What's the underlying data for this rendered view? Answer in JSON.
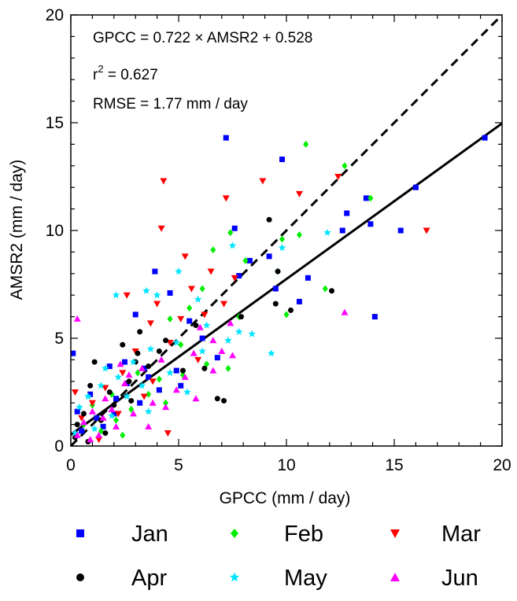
{
  "chart_data": {
    "type": "scatter",
    "title": "",
    "xlabel": "GPCC (mm / day)",
    "ylabel": "AMSR2 (mm / day)",
    "xlim": [
      0,
      20
    ],
    "ylim": [
      0,
      20
    ],
    "xticks": [
      "0",
      "5",
      "10",
      "15",
      "20"
    ],
    "yticks": [
      "0",
      "5",
      "10",
      "15",
      "20"
    ],
    "grid": false,
    "legend_position": "bottom",
    "annotations": {
      "line1": "GPCC = 0.722 × AMSR2 + 0.528",
      "line2_base": "r",
      "line2_sup": "2",
      "line2_rest": " = 0.627",
      "line3": "RMSE = 1.77 mm / day"
    },
    "lines": [
      {
        "style": "solid",
        "x": [
          0,
          20
        ],
        "y": [
          0.528,
          14.968
        ]
      },
      {
        "style": "dashed",
        "x": [
          0,
          20
        ],
        "y": [
          0,
          20
        ]
      }
    ],
    "series": [
      {
        "name": "Jan",
        "marker": "square",
        "color": "#0000ff",
        "points": [
          [
            7.2,
            14.3
          ],
          [
            9.8,
            13.3
          ],
          [
            13.7,
            11.5
          ],
          [
            12.8,
            10.8
          ],
          [
            12.6,
            10.0
          ],
          [
            13.9,
            10.3
          ],
          [
            15.3,
            10.0
          ],
          [
            16.0,
            12.0
          ],
          [
            19.2,
            14.3
          ],
          [
            7.6,
            10.1
          ],
          [
            8.3,
            8.6
          ],
          [
            9.2,
            8.8
          ],
          [
            7.8,
            7.9
          ],
          [
            9.5,
            7.3
          ],
          [
            11.0,
            7.8
          ],
          [
            10.6,
            6.7
          ],
          [
            14.1,
            6.0
          ],
          [
            3.9,
            8.1
          ],
          [
            4.6,
            7.1
          ],
          [
            3.0,
            6.1
          ],
          [
            5.5,
            5.8
          ],
          [
            6.1,
            5.0
          ],
          [
            6.8,
            4.1
          ],
          [
            4.9,
            3.5
          ],
          [
            3.6,
            3.2
          ],
          [
            2.6,
            2.9
          ],
          [
            2.1,
            2.2
          ],
          [
            1.2,
            1.3
          ],
          [
            0.5,
            0.7
          ],
          [
            0.9,
            2.4
          ],
          [
            0.1,
            4.3
          ],
          [
            1.8,
            3.7
          ],
          [
            2.5,
            3.9
          ],
          [
            3.2,
            2.0
          ],
          [
            4.1,
            2.6
          ],
          [
            5.1,
            2.8
          ],
          [
            1.5,
            0.9
          ],
          [
            0.3,
            1.6
          ],
          [
            2.0,
            1.5
          ],
          [
            3.4,
            3.6
          ]
        ]
      },
      {
        "name": "Feb",
        "marker": "diamond",
        "color": "#00ee00",
        "points": [
          [
            10.9,
            14.0
          ],
          [
            12.7,
            13.0
          ],
          [
            13.9,
            11.5
          ],
          [
            10.6,
            9.8
          ],
          [
            7.4,
            9.9
          ],
          [
            8.1,
            8.6
          ],
          [
            6.6,
            9.1
          ],
          [
            9.8,
            9.6
          ],
          [
            9.6,
            8.1
          ],
          [
            11.8,
            7.3
          ],
          [
            10.0,
            6.1
          ],
          [
            6.1,
            7.3
          ],
          [
            5.5,
            6.4
          ],
          [
            4.6,
            5.9
          ],
          [
            5.1,
            4.7
          ],
          [
            6.3,
            3.8
          ],
          [
            7.3,
            3.6
          ],
          [
            4.1,
            3.1
          ],
          [
            3.6,
            2.4
          ],
          [
            2.8,
            1.7
          ],
          [
            2.1,
            1.2
          ],
          [
            1.4,
            0.7
          ],
          [
            0.6,
            1.0
          ],
          [
            1.9,
            2.4
          ],
          [
            3.1,
            3.4
          ],
          [
            4.4,
            2.0
          ],
          [
            2.4,
            0.5
          ],
          [
            5.2,
            3.3
          ],
          [
            7.8,
            6.0
          ],
          [
            1.0,
            1.9
          ]
        ]
      },
      {
        "name": "Mar",
        "marker": "triangle-down",
        "color": "#ff0000",
        "points": [
          [
            4.3,
            12.3
          ],
          [
            8.9,
            12.3
          ],
          [
            10.6,
            11.7
          ],
          [
            12.4,
            12.5
          ],
          [
            7.2,
            11.5
          ],
          [
            4.2,
            10.1
          ],
          [
            5.3,
            8.8
          ],
          [
            6.5,
            8.1
          ],
          [
            7.6,
            7.8
          ],
          [
            5.6,
            7.3
          ],
          [
            2.6,
            7.0
          ],
          [
            4.0,
            6.6
          ],
          [
            5.1,
            5.9
          ],
          [
            6.2,
            6.1
          ],
          [
            3.7,
            5.7
          ],
          [
            4.6,
            4.8
          ],
          [
            3.0,
            4.4
          ],
          [
            2.4,
            3.4
          ],
          [
            1.6,
            2.7
          ],
          [
            1.0,
            2.0
          ],
          [
            0.5,
            1.3
          ],
          [
            2.2,
            1.5
          ],
          [
            3.4,
            2.3
          ],
          [
            4.5,
            0.6
          ],
          [
            1.3,
            0.3
          ],
          [
            0.2,
            2.5
          ],
          [
            5.9,
            4.0
          ],
          [
            16.5,
            10.0
          ],
          [
            7.1,
            6.6
          ],
          [
            3.8,
            3.0
          ]
        ]
      },
      {
        "name": "Apr",
        "marker": "circle",
        "color": "#000000",
        "points": [
          [
            9.2,
            10.5
          ],
          [
            9.6,
            8.1
          ],
          [
            12.1,
            7.2
          ],
          [
            9.5,
            6.6
          ],
          [
            10.2,
            6.3
          ],
          [
            7.9,
            6.0
          ],
          [
            5.8,
            5.6
          ],
          [
            3.2,
            5.3
          ],
          [
            2.4,
            4.7
          ],
          [
            4.1,
            4.4
          ],
          [
            5.2,
            3.5
          ],
          [
            6.8,
            2.2
          ],
          [
            7.1,
            2.1
          ],
          [
            3.6,
            3.7
          ],
          [
            2.7,
            3.0
          ],
          [
            1.8,
            2.5
          ],
          [
            1.1,
            3.9
          ],
          [
            0.6,
            1.5
          ],
          [
            0.3,
            1.0
          ],
          [
            1.4,
            1.2
          ],
          [
            2.0,
            1.9
          ],
          [
            2.8,
            2.1
          ],
          [
            3.1,
            4.3
          ],
          [
            4.4,
            4.9
          ],
          [
            0.9,
            2.8
          ],
          [
            0.2,
            0.4
          ],
          [
            1.6,
            0.6
          ],
          [
            6.2,
            3.6
          ],
          [
            3.0,
            3.9
          ],
          [
            0.8,
            0.2
          ]
        ]
      },
      {
        "name": "May",
        "marker": "star",
        "color": "#00e5ff",
        "points": [
          [
            11.9,
            9.9
          ],
          [
            7.5,
            9.3
          ],
          [
            9.8,
            9.2
          ],
          [
            4.0,
            7.0
          ],
          [
            5.0,
            8.1
          ],
          [
            3.5,
            7.2
          ],
          [
            2.1,
            7.0
          ],
          [
            5.9,
            6.8
          ],
          [
            6.3,
            5.6
          ],
          [
            7.8,
            5.3
          ],
          [
            9.3,
            4.3
          ],
          [
            4.9,
            4.8
          ],
          [
            3.7,
            4.5
          ],
          [
            2.9,
            3.9
          ],
          [
            2.2,
            3.2
          ],
          [
            1.4,
            2.8
          ],
          [
            0.8,
            2.3
          ],
          [
            0.4,
            1.8
          ],
          [
            0.2,
            0.6
          ],
          [
            1.1,
            0.8
          ],
          [
            1.9,
            1.4
          ],
          [
            2.6,
            2.3
          ],
          [
            3.3,
            2.8
          ],
          [
            4.6,
            3.4
          ],
          [
            5.4,
            2.5
          ],
          [
            6.1,
            4.4
          ],
          [
            7.3,
            4.9
          ],
          [
            3.6,
            1.6
          ],
          [
            1.6,
            3.6
          ],
          [
            8.4,
            5.2
          ]
        ]
      },
      {
        "name": "Jun",
        "marker": "triangle-up",
        "color": "#ff00ff",
        "points": [
          [
            0.3,
            5.9
          ],
          [
            12.7,
            6.2
          ],
          [
            6.0,
            5.5
          ],
          [
            7.4,
            5.7
          ],
          [
            6.6,
            4.9
          ],
          [
            5.7,
            4.3
          ],
          [
            4.2,
            4.0
          ],
          [
            3.3,
            3.6
          ],
          [
            2.5,
            2.9
          ],
          [
            1.6,
            2.2
          ],
          [
            1.0,
            1.6
          ],
          [
            0.6,
            1.1
          ],
          [
            0.3,
            0.5
          ],
          [
            1.3,
            0.5
          ],
          [
            2.1,
            0.9
          ],
          [
            2.9,
            1.5
          ],
          [
            3.8,
            2.0
          ],
          [
            4.9,
            2.6
          ],
          [
            5.3,
            3.2
          ],
          [
            6.6,
            3.5
          ],
          [
            7.0,
            4.4
          ],
          [
            2.7,
            3.3
          ],
          [
            1.9,
            1.7
          ],
          [
            3.6,
            0.9
          ],
          [
            4.4,
            1.8
          ],
          [
            0.9,
            0.3
          ],
          [
            5.8,
            2.2
          ],
          [
            2.3,
            3.8
          ],
          [
            7.5,
            4.2
          ],
          [
            1.5,
            1.3
          ]
        ]
      }
    ]
  }
}
